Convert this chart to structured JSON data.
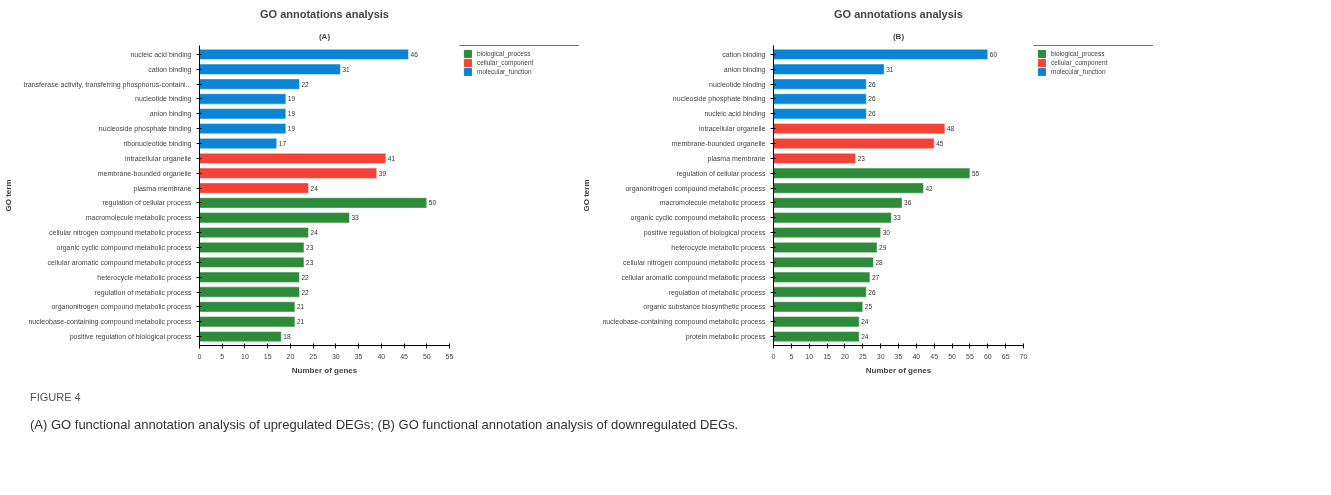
{
  "chart_data": [
    {
      "type": "bar",
      "orientation": "horizontal",
      "title": "GO annotations analysis",
      "subtitle": "(A)",
      "xlabel": "Number of genes",
      "ylabel": "GO term",
      "categories": [
        "nucleic acid binding",
        "cation binding",
        "transferase activity, transferring phosphorus-containi...",
        "nucleotide binding",
        "anion binding",
        "nucleoside phosphate binding",
        "ribonucleotide binding",
        "intracellular organelle",
        "membrane-bounded organelle",
        "plasma membrane",
        "regulation of cellular process",
        "macromolecule metabolic process",
        "cellular nitrogen compound metabolic process",
        "organic cyclic compound metabolic process",
        "cellular aromatic compound metabolic process",
        "heterocycle metabolic process",
        "regulation of metabolic process",
        "organonitrogen compound metabolic process",
        "nucleobase-containing compound metabolic process",
        "positive regulation of biological process"
      ],
      "series": [
        {
          "name": "biological_process",
          "color": "#2e8b3a",
          "values": [
            null,
            null,
            null,
            null,
            null,
            null,
            null,
            null,
            null,
            null,
            50,
            33,
            24,
            23,
            23,
            22,
            22,
            21,
            21,
            18
          ]
        },
        {
          "name": "cellular_component",
          "color": "#f44336",
          "values": [
            null,
            null,
            null,
            null,
            null,
            null,
            null,
            41,
            39,
            24,
            null,
            null,
            null,
            null,
            null,
            null,
            null,
            null,
            null,
            null
          ]
        },
        {
          "name": "molecular_function",
          "color": "#0a84d6",
          "values": [
            46,
            31,
            22,
            19,
            19,
            19,
            17,
            null,
            null,
            null,
            null,
            null,
            null,
            null,
            null,
            null,
            null,
            null,
            null,
            null
          ]
        }
      ],
      "xlim": [
        0,
        55
      ],
      "xticks": [
        0,
        5,
        10,
        15,
        20,
        25,
        30,
        35,
        40,
        45,
        50,
        55
      ],
      "grid": false,
      "legend": "top right",
      "data_labels": true,
      "annotations": [
        "FIGURE 4",
        "(A) GO functional annotation analysis of upregulated DEGs; (B) GO functional annotation analysis of downregulated DEGs."
      ]
    },
    {
      "type": "bar",
      "orientation": "horizontal",
      "title": "GO annotations analysis",
      "subtitle": "(B)",
      "xlabel": "Number of genes",
      "ylabel": "GO term",
      "categories": [
        "cation binding",
        "anion binding",
        "nucleotide binding",
        "nucleoside phosphate binding",
        "nucleic acid binding",
        "intracellular organelle",
        "membrane-bounded organelle",
        "plasma membrane",
        "regulation of cellular process",
        "organonitrogen compound metabolic process",
        "macromolecule metabolic process",
        "organic cyclic compound metabolic process",
        "positive regulation of biological process",
        "heterocycle metabolic process",
        "cellular nitrogen compound metabolic process",
        "cellular aromatic compound metabolic process",
        "regulation of metabolic process",
        "organic substance biosynthetic process",
        "nucleobase-containing compound metabolic process",
        "protein metabolic process"
      ],
      "series": [
        {
          "name": "biological_process",
          "color": "#2e8b3a",
          "values": [
            null,
            null,
            null,
            null,
            null,
            null,
            null,
            null,
            55,
            42,
            36,
            33,
            30,
            29,
            28,
            27,
            26,
            25,
            24,
            24
          ]
        },
        {
          "name": "cellular_component",
          "color": "#f44336",
          "values": [
            null,
            null,
            null,
            null,
            null,
            48,
            45,
            23,
            null,
            null,
            null,
            null,
            null,
            null,
            null,
            null,
            null,
            null,
            null,
            null
          ]
        },
        {
          "name": "molecular_function",
          "color": "#0a84d6",
          "values": [
            60,
            31,
            26,
            26,
            26,
            null,
            null,
            null,
            null,
            null,
            null,
            null,
            null,
            null,
            null,
            null,
            null,
            null,
            null,
            null
          ]
        }
      ],
      "xlim": [
        0,
        70
      ],
      "xticks": [
        0,
        5,
        10,
        15,
        20,
        25,
        30,
        35,
        40,
        45,
        50,
        55,
        60,
        65,
        70
      ],
      "grid": false,
      "legend": "top right",
      "data_labels": true
    }
  ]
}
